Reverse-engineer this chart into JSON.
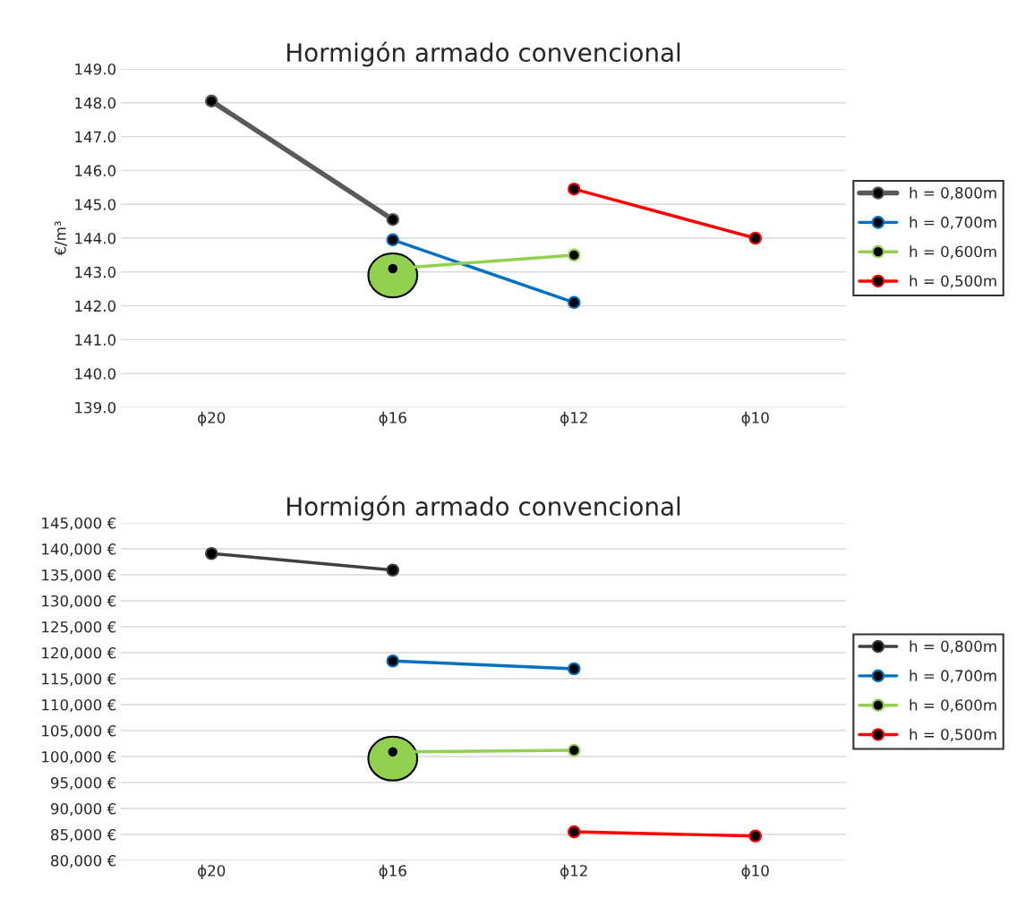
{
  "chart_data": [
    {
      "type": "line",
      "title": "Hormigón armado convencional",
      "ylabel": "€/m³",
      "categories": [
        "ϕ20",
        "ϕ16",
        "ϕ12",
        "ϕ10"
      ],
      "series": [
        {
          "name": "h = 0,800m",
          "color": "#595959",
          "values": [
            148.05,
            144.55,
            null,
            null
          ]
        },
        {
          "name": "h = 0,700m",
          "color": "#0070c0",
          "values": [
            null,
            143.95,
            142.1,
            null
          ]
        },
        {
          "name": "h = 0,600m",
          "color": "#92d050",
          "values": [
            null,
            143.1,
            143.5,
            null
          ]
        },
        {
          "name": "h = 0,500m",
          "color": "#ff0000",
          "values": [
            null,
            null,
            145.45,
            144.0
          ]
        }
      ],
      "ylim": [
        139,
        149
      ],
      "yticks": [
        {
          "value": 139,
          "label": "139.0"
        },
        {
          "value": 140,
          "label": "140.0"
        },
        {
          "value": 141,
          "label": "141.0"
        },
        {
          "value": 142,
          "label": "142.0"
        },
        {
          "value": 143,
          "label": "143.0"
        },
        {
          "value": 144,
          "label": "144.0"
        },
        {
          "value": 145,
          "label": "145.0"
        },
        {
          "value": 146,
          "label": "146.0"
        },
        {
          "value": 147,
          "label": "147.0"
        },
        {
          "value": 148,
          "label": "148.0"
        },
        {
          "value": 149,
          "label": "149.0"
        }
      ],
      "grid": "y",
      "legend": "right",
      "marker": "circle",
      "line_style": "solid"
    },
    {
      "type": "line",
      "title": "Hormigón armado convencional",
      "categories": [
        "ϕ20",
        "ϕ16",
        "ϕ12",
        "ϕ10"
      ],
      "series": [
        {
          "name": "h = 0,800m",
          "color": "#404040",
          "values": [
            139100,
            135900,
            null,
            null
          ]
        },
        {
          "name": "h = 0,700m",
          "color": "#0070c0",
          "values": [
            null,
            118400,
            116900,
            null
          ]
        },
        {
          "name": "h = 0,600m",
          "color": "#92d050",
          "values": [
            null,
            100900,
            101200,
            null
          ]
        },
        {
          "name": "h = 0,500m",
          "color": "#ff0000",
          "values": [
            null,
            null,
            85500,
            84700
          ]
        }
      ],
      "ylim": [
        80000,
        145000
      ],
      "yticks": [
        {
          "value": 80000,
          "label": "80,000 €"
        },
        {
          "value": 85000,
          "label": "85,000 €"
        },
        {
          "value": 90000,
          "label": "90,000 €"
        },
        {
          "value": 95000,
          "label": "95,000 €"
        },
        {
          "value": 100000,
          "label": "100,000 €"
        },
        {
          "value": 105000,
          "label": "105,000 €"
        },
        {
          "value": 110000,
          "label": "110,000 €"
        },
        {
          "value": 115000,
          "label": "115,000 €"
        },
        {
          "value": 120000,
          "label": "120,000 €"
        },
        {
          "value": 125000,
          "label": "125,000 €"
        },
        {
          "value": 130000,
          "label": "130,000 €"
        },
        {
          "value": 135000,
          "label": "135,000 €"
        },
        {
          "value": 140000,
          "label": "140,000 €"
        },
        {
          "value": 145000,
          "label": "145,000 €"
        }
      ],
      "grid": "y",
      "legend": "right",
      "marker": "circle",
      "line_style": "solid"
    }
  ]
}
